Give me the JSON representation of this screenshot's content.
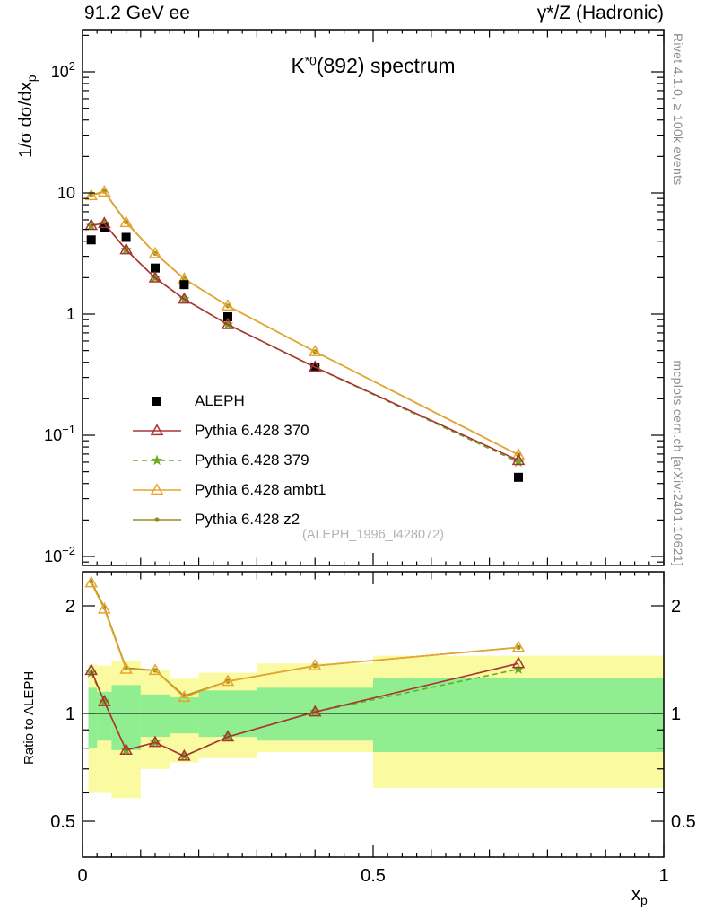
{
  "page": {
    "header_left": "91.2 GeV ee",
    "header_right": "γ*/Z (Hadronic)",
    "title": {
      "base": "K",
      "sup": "*0",
      "rest": "(892) spectrum"
    },
    "watermark": "(ALEPH_1996_I428072)",
    "right_label_top": "Rivet 4.1.0, ≥ 100k events",
    "right_label_bottom": "mcplots.cern.ch [arXiv:2401.10621]",
    "ylabel_main": {
      "base": "1/σ  dσ/dx",
      "sub": "p"
    },
    "ylabel_ratio": "Ratio to ALEPH",
    "xlabel": {
      "base": "x",
      "sub": "p"
    }
  },
  "chart_data": {
    "type": "line",
    "title": "K*0(892) spectrum",
    "xlabel": "x_p",
    "ylabel_main": "1/σ dσ/dx_p",
    "ylabel_ratio": "Ratio to ALEPH",
    "x": [
      0.015,
      0.0375,
      0.075,
      0.125,
      0.175,
      0.25,
      0.4,
      0.75
    ],
    "bin_edges": [
      0.01,
      0.025,
      0.05,
      0.1,
      0.15,
      0.2,
      0.3,
      0.5,
      1.0
    ],
    "axes": {
      "x": {
        "scale": "linear",
        "min": 0,
        "max": 1,
        "major": [
          0,
          0.5,
          1
        ],
        "tick_labels": [
          {
            "v": 0,
            "t": "0"
          },
          {
            "v": 0.5,
            "t": "0.5"
          },
          {
            "v": 1,
            "t": "1"
          }
        ]
      },
      "y_main": {
        "scale": "log",
        "min": 0.0084,
        "max": 223,
        "major": [
          0.01,
          0.1,
          1,
          10,
          100
        ],
        "tick_labels": [
          {
            "v": 0.01,
            "t": "10",
            "e": "−2"
          },
          {
            "v": 0.1,
            "t": "10",
            "e": "−1"
          },
          {
            "v": 1,
            "t": "1"
          },
          {
            "v": 10,
            "t": "10"
          },
          {
            "v": 100,
            "t": "10",
            "e": "2"
          }
        ]
      },
      "y_ratio": {
        "scale": "log",
        "min": 0.402,
        "max": 2.49,
        "major": [
          0.5,
          1,
          2
        ],
        "tick_labels": [
          {
            "v": 0.5,
            "t": "0.5"
          },
          {
            "v": 1,
            "t": "1"
          },
          {
            "v": 2,
            "t": "2"
          }
        ]
      }
    },
    "reference": {
      "key": "aleph",
      "label": "ALEPH",
      "color": "#000000",
      "marker": "square",
      "values": [
        4.1,
        5.2,
        4.3,
        2.4,
        1.75,
        0.95,
        0.36,
        0.045
      ]
    },
    "series": [
      {
        "key": "z2",
        "label": "Pythia 6.428 z2",
        "color": "#8f8f1f",
        "marker": "dot",
        "dash": null,
        "values": [
          9.6,
          10.3,
          5.75,
          3.17,
          1.96,
          1.17,
          0.49,
          0.069
        ],
        "ratio": [
          2.34,
          1.98,
          1.34,
          1.32,
          1.12,
          1.23,
          1.36,
          1.53
        ]
      },
      {
        "key": "ambt1",
        "label": "Pythia 6.428 ambt1",
        "color": "#e8a42e",
        "marker": "triangle",
        "dash": null,
        "values": [
          9.5,
          10.2,
          5.7,
          3.16,
          1.95,
          1.17,
          0.49,
          0.069
        ],
        "ratio": [
          2.32,
          1.96,
          1.33,
          1.32,
          1.11,
          1.23,
          1.36,
          1.53
        ]
      },
      {
        "key": "p379",
        "label": "Pythia 6.428 379",
        "color": "#6aaa22",
        "marker": "star",
        "dash": "6 4",
        "values": [
          5.35,
          5.6,
          3.4,
          1.99,
          1.33,
          0.82,
          0.364,
          0.06
        ],
        "ratio": [
          1.3,
          1.08,
          0.79,
          0.83,
          0.76,
          0.86,
          1.01,
          1.33
        ]
      },
      {
        "key": "p370",
        "label": "Pythia 6.428 370",
        "color": "#aa3333",
        "marker": "triangle",
        "dash": null,
        "values": [
          5.4,
          5.6,
          3.4,
          1.99,
          1.33,
          0.82,
          0.365,
          0.062
        ],
        "ratio": [
          1.32,
          1.08,
          0.79,
          0.83,
          0.76,
          0.86,
          1.01,
          1.38
        ]
      }
    ],
    "legend_order": [
      "aleph",
      "p370",
      "p379",
      "ambt1",
      "z2"
    ],
    "ratio_reference_line": 1,
    "ratio_bands": {
      "yellow_color": "#fafaa0",
      "green_color": "#90ee90",
      "yellow": [
        [
          0.6,
          1.37
        ],
        [
          0.6,
          1.36
        ],
        [
          0.58,
          1.4
        ],
        [
          0.7,
          1.32
        ],
        [
          0.73,
          1.25
        ],
        [
          0.75,
          1.3
        ],
        [
          0.78,
          1.38
        ],
        [
          0.62,
          1.45
        ]
      ],
      "green": [
        [
          0.8,
          1.18
        ],
        [
          0.84,
          1.15
        ],
        [
          0.79,
          1.2
        ],
        [
          0.86,
          1.13
        ],
        [
          0.88,
          1.11
        ],
        [
          0.86,
          1.16
        ],
        [
          0.84,
          1.18
        ],
        [
          0.78,
          1.26
        ]
      ]
    }
  }
}
